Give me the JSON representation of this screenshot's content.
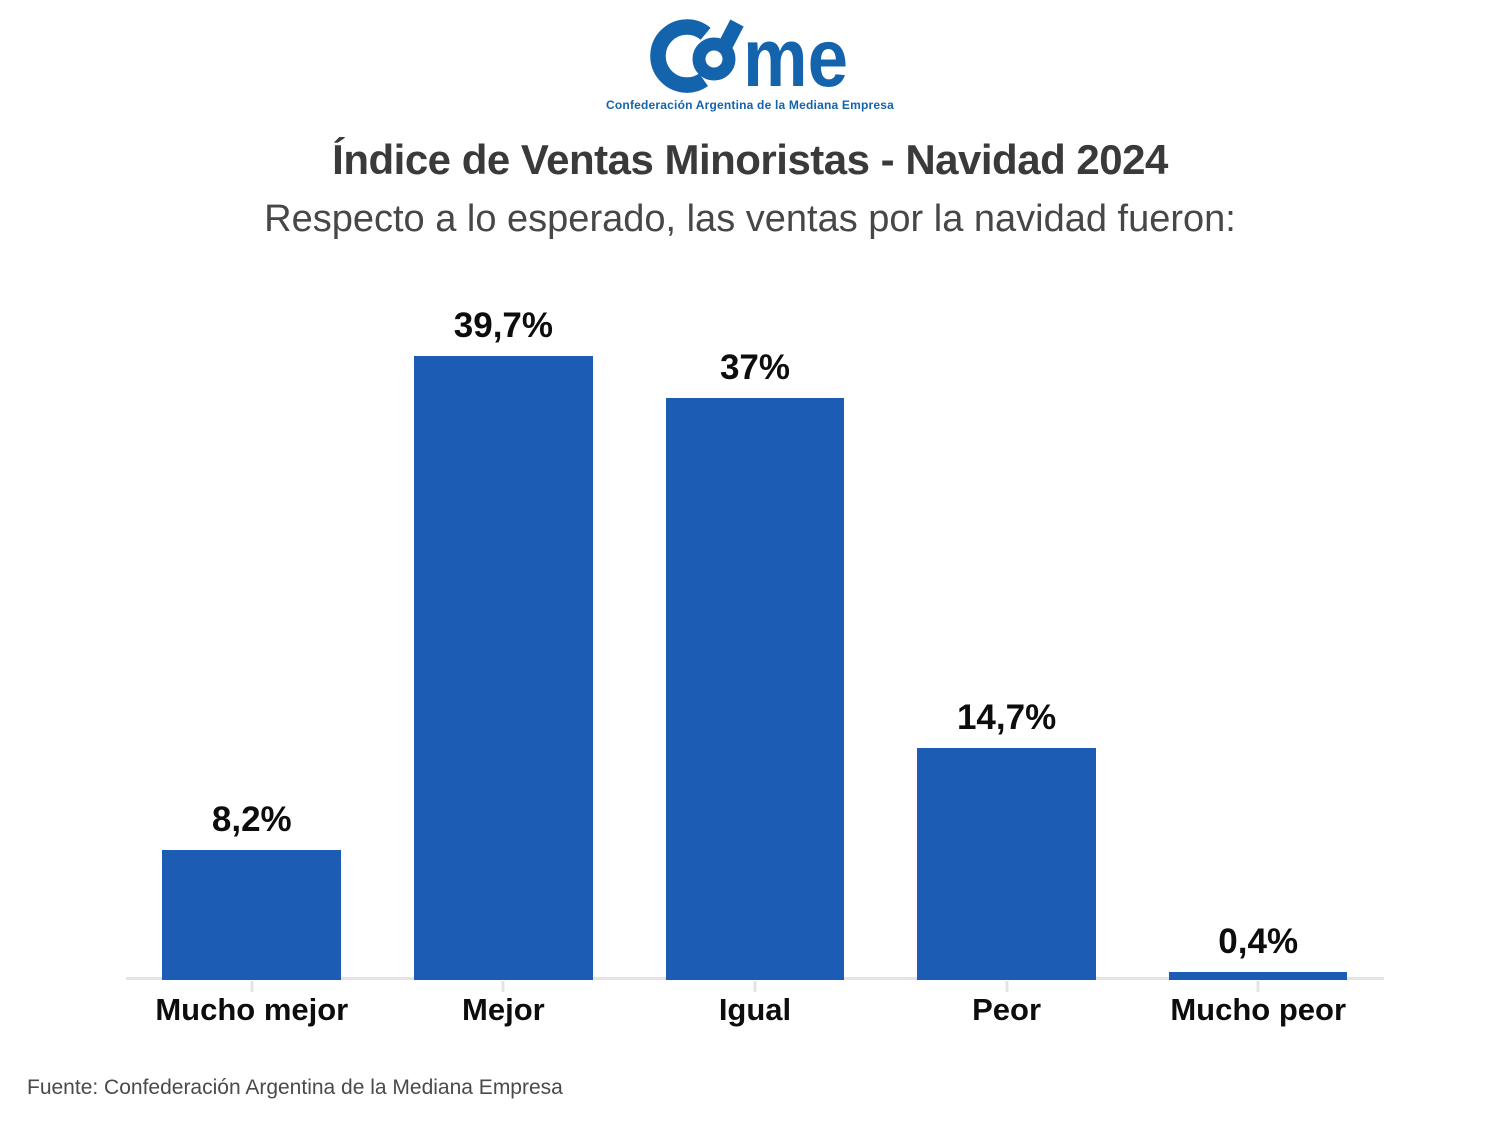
{
  "logo": {
    "brand": "came",
    "wordmark_suffix": "me",
    "tagline": "Confederación Argentina de la Mediana Empresa",
    "color": "#1464ad"
  },
  "header": {
    "title": "Índice de Ventas Minoristas - Navidad 2024",
    "subtitle": "Respecto a lo esperado, las ventas por la navidad fueron:"
  },
  "chart_data": {
    "type": "bar",
    "categories": [
      "Mucho mejor",
      "Mejor",
      "Igual",
      "Peor",
      "Mucho peor"
    ],
    "values": [
      8.2,
      39.7,
      37,
      14.7,
      0.4
    ],
    "value_labels": [
      "8,2%",
      "39,7%",
      "37%",
      "14,7%",
      "0,4%"
    ],
    "title": "Índice de Ventas Minoristas - Navidad 2024",
    "xlabel": "",
    "ylabel": "",
    "ylim": [
      0,
      42
    ],
    "grid": false,
    "legend": false,
    "bar_color": "#1c5cb4",
    "axis_color": "#e4e4e4",
    "label_color": "#0d0d0d"
  },
  "footer": {
    "source": "Fuente: Confederación Argentina de la Mediana Empresa"
  }
}
